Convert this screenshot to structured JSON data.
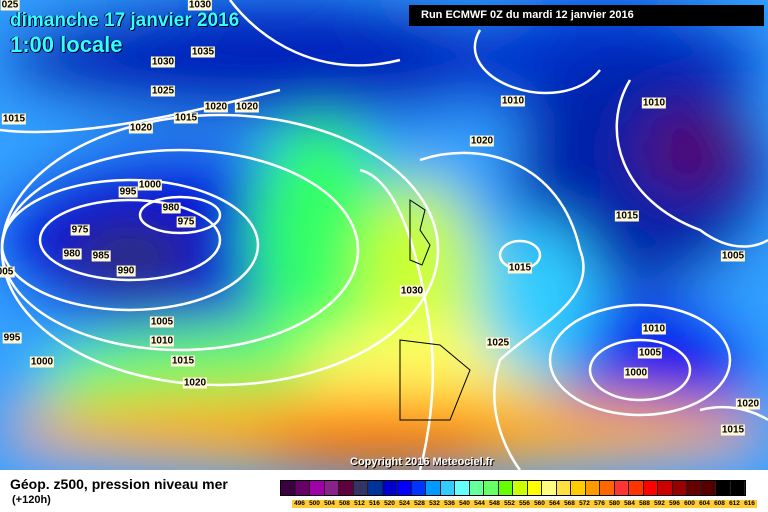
{
  "header": {
    "date_title": "dimanche 17 janvier 2016",
    "time_title": "1:00 locale",
    "run_info": "Run ECMWF 0Z du mardi 12 janvier 2016"
  },
  "copyright": "Copyright 2016 Meteociel.fr",
  "legend": {
    "title": "Géop. z500, pression niveau mer",
    "subtitle": "(+120h)",
    "labels": [
      "496",
      "500",
      "504",
      "508",
      "512",
      "516",
      "520",
      "524",
      "528",
      "532",
      "536",
      "540",
      "544",
      "548",
      "552",
      "556",
      "560",
      "564",
      "568",
      "572",
      "576",
      "580",
      "584",
      "588",
      "592",
      "596",
      "600",
      "604",
      "608",
      "612",
      "616"
    ],
    "colors": [
      "#3a0040",
      "#660066",
      "#a000a8",
      "#882288",
      "#600040",
      "#333366",
      "#003399",
      "#0000cc",
      "#0000ff",
      "#0033ff",
      "#0099ff",
      "#33ccff",
      "#66ffff",
      "#66ff99",
      "#66ff66",
      "#66ff00",
      "#ccff00",
      "#ffff00",
      "#ffff80",
      "#ffe040",
      "#ffcc00",
      "#ff9900",
      "#ff6600",
      "#ff3333",
      "#ff3300",
      "#ff0000",
      "#cc0000",
      "#990000",
      "#660000",
      "#550000",
      "#000000",
      "#000000"
    ]
  },
  "isobars": [
    "1030",
    "1035",
    "1030",
    "1025",
    "1020",
    "1020",
    "1015",
    "1020",
    "1015",
    "1000",
    "995",
    "980",
    "975",
    "975",
    "980",
    "985",
    "990",
    "005",
    "995",
    "1005",
    "1010",
    "1000",
    "1015",
    "1020",
    "1030",
    "1025",
    "1020",
    "1010",
    "1010",
    "1015",
    "1015",
    "1005",
    "1010",
    "1005",
    "1000",
    "1020",
    "1015",
    "025"
  ]
}
